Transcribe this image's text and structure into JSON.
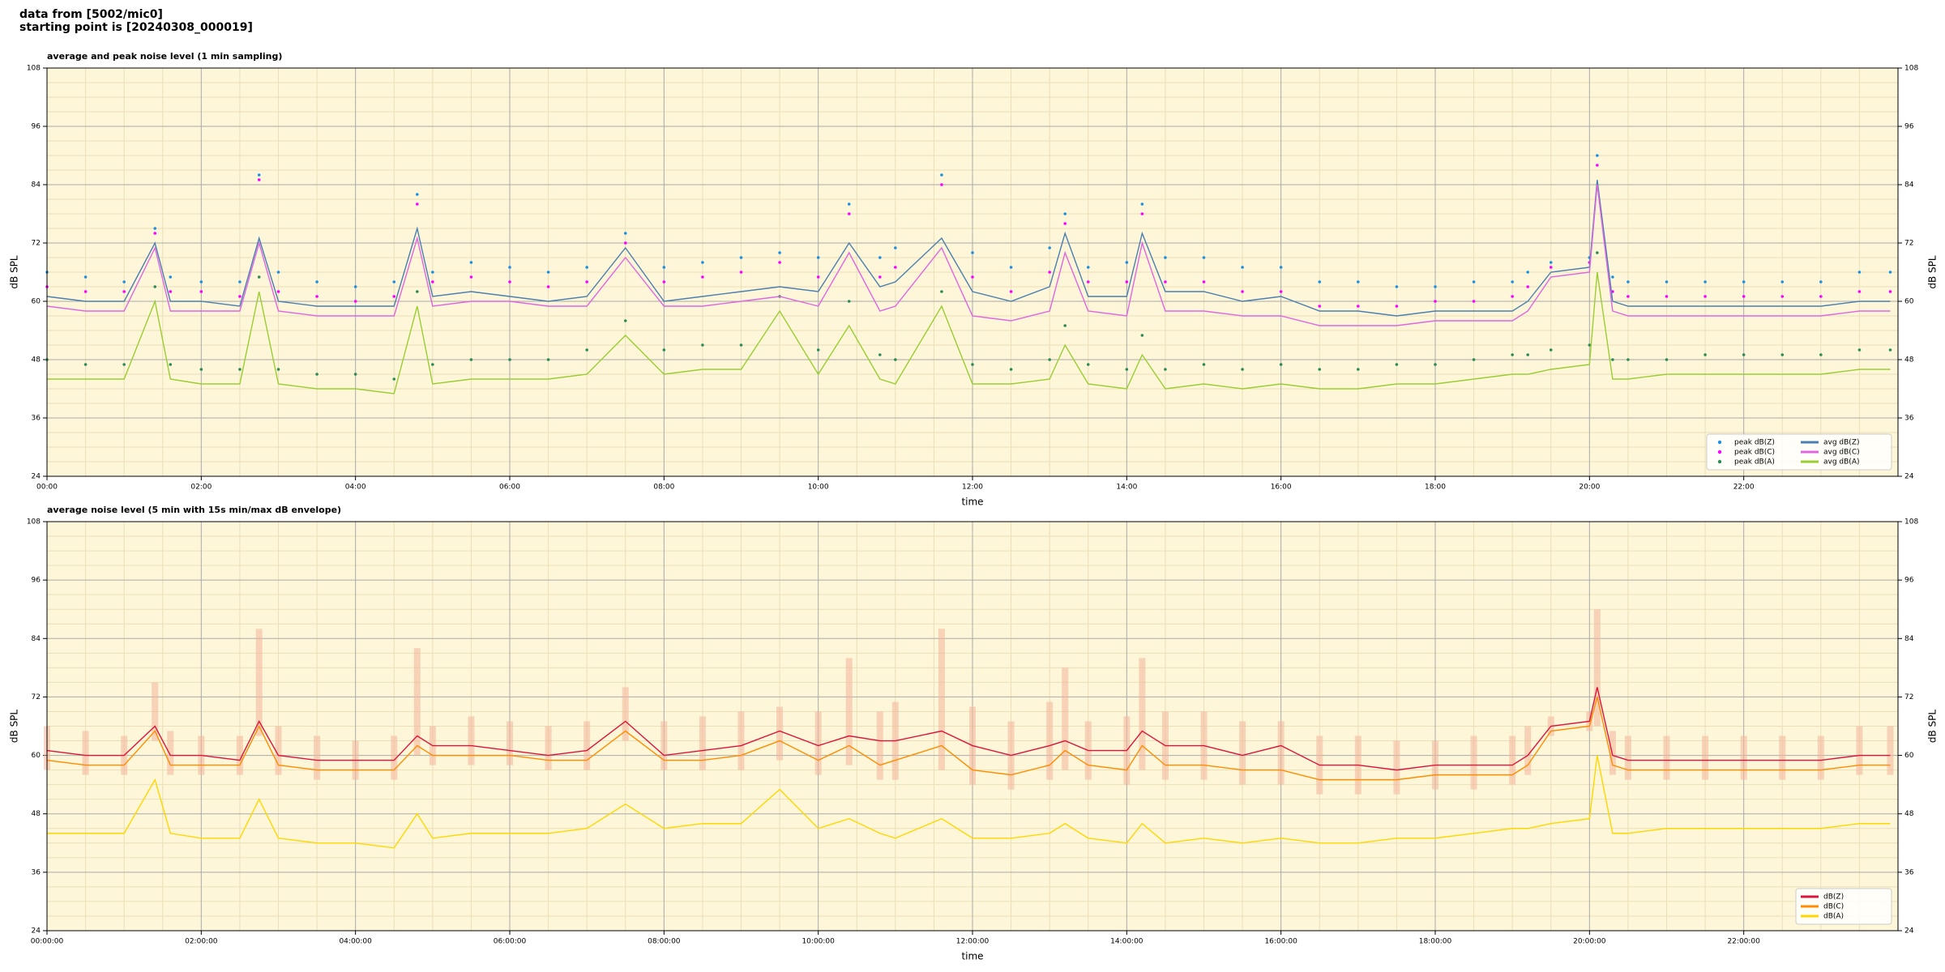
{
  "header": {
    "source": "data from [5002/mic0]",
    "start": "starting point is [20240308_000019]"
  },
  "chart_data": [
    {
      "type": "line",
      "title": "average and peak noise level (1 min sampling)",
      "xlabel": "time",
      "ylabel": "dB SPL",
      "y2label": "dB SPL",
      "xlim": [
        0,
        24
      ],
      "ylim": [
        24,
        108
      ],
      "y2lim": [
        24,
        108
      ],
      "xticks": [
        {
          "value": 0,
          "label": "00:00"
        },
        {
          "value": 2,
          "label": "02:00"
        },
        {
          "value": 4,
          "label": "04:00"
        },
        {
          "value": 6,
          "label": "06:00"
        },
        {
          "value": 8,
          "label": "08:00"
        },
        {
          "value": 10,
          "label": "10:00"
        },
        {
          "value": 12,
          "label": "12:00"
        },
        {
          "value": 14,
          "label": "14:00"
        },
        {
          "value": 16,
          "label": "16:00"
        },
        {
          "value": 18,
          "label": "18:00"
        },
        {
          "value": 20,
          "label": "20:00"
        },
        {
          "value": 22,
          "label": "22:00"
        }
      ],
      "xminorticks": [
        0.5,
        1,
        1.5,
        2.5,
        3,
        3.5,
        4.5,
        5,
        5.5,
        6.5,
        7,
        7.5,
        8.5,
        9,
        9.5,
        10.5,
        11,
        11.5,
        12.5,
        13,
        13.5,
        14.5,
        15,
        15.5,
        16.5,
        17,
        17.5,
        18.5,
        19,
        19.5,
        20.5,
        21,
        21.5,
        22.5,
        23,
        23.5
      ],
      "yticks": [
        24,
        36,
        48,
        60,
        72,
        84,
        96,
        108
      ],
      "y2ticks": [
        24,
        36,
        48,
        60,
        72,
        84,
        96,
        108
      ],
      "yminorticks": [
        27,
        30,
        33,
        39,
        42,
        45,
        51,
        54,
        57,
        63,
        66,
        69,
        75,
        78,
        81,
        87,
        90,
        93,
        99,
        102,
        105
      ],
      "grid": true,
      "background": "#fdf6d8",
      "legend": "lower right",
      "legend_columns": 2,
      "x": [
        0,
        0.5,
        1,
        1.4,
        1.6,
        2,
        2.5,
        2.75,
        3,
        3.5,
        4,
        4.5,
        4.8,
        5,
        5.5,
        6,
        6.5,
        7,
        7.5,
        8,
        8.5,
        9,
        9.5,
        10,
        10.4,
        10.8,
        11,
        11.6,
        12,
        12.5,
        13,
        13.2,
        13.5,
        14,
        14.2,
        14.5,
        15,
        15.5,
        16,
        16.5,
        17,
        17.5,
        18,
        18.5,
        19,
        19.2,
        19.5,
        20,
        20.1,
        20.3,
        20.5,
        21,
        21.5,
        22,
        22.5,
        23,
        23.5,
        23.9
      ],
      "series": [
        {
          "name": "peak dB(Z)",
          "type": "scatter",
          "color": "#1f8fe0",
          "values": [
            66,
            65,
            64,
            75,
            65,
            64,
            64,
            86,
            66,
            64,
            63,
            64,
            82,
            66,
            68,
            67,
            66,
            67,
            74,
            67,
            68,
            69,
            70,
            69,
            80,
            69,
            71,
            86,
            70,
            67,
            71,
            78,
            67,
            68,
            80,
            69,
            69,
            67,
            67,
            64,
            64,
            63,
            63,
            64,
            64,
            66,
            68,
            69,
            90,
            65,
            64,
            64,
            64,
            64,
            64,
            64,
            66,
            66
          ]
        },
        {
          "name": "peak dB(C)",
          "type": "scatter",
          "color": "#ff00ff",
          "values": [
            63,
            62,
            62,
            74,
            62,
            62,
            61,
            85,
            62,
            61,
            60,
            61,
            80,
            64,
            65,
            64,
            63,
            64,
            72,
            64,
            65,
            66,
            68,
            65,
            78,
            65,
            67,
            84,
            65,
            62,
            66,
            76,
            64,
            64,
            78,
            64,
            64,
            62,
            62,
            59,
            59,
            59,
            60,
            60,
            61,
            63,
            67,
            68,
            88,
            62,
            61,
            61,
            61,
            61,
            61,
            61,
            62,
            62
          ]
        },
        {
          "name": "peak dB(A)",
          "type": "scatter",
          "color": "#2e8b57",
          "values": [
            48,
            47,
            47,
            63,
            47,
            46,
            46,
            65,
            46,
            45,
            45,
            44,
            62,
            47,
            48,
            48,
            48,
            50,
            56,
            50,
            51,
            51,
            61,
            50,
            60,
            49,
            48,
            62,
            47,
            46,
            48,
            55,
            47,
            46,
            53,
            46,
            47,
            46,
            47,
            46,
            46,
            47,
            47,
            48,
            49,
            49,
            50,
            51,
            70,
            48,
            48,
            48,
            49,
            49,
            49,
            49,
            50,
            50
          ]
        },
        {
          "name": "avg dB(Z)",
          "type": "line",
          "color": "#4a7fb0",
          "values": [
            61,
            60,
            60,
            72,
            60,
            60,
            59,
            73,
            60,
            59,
            59,
            59,
            75,
            61,
            62,
            61,
            60,
            61,
            71,
            60,
            61,
            62,
            63,
            62,
            72,
            63,
            64,
            73,
            62,
            60,
            63,
            74,
            61,
            61,
            74,
            62,
            62,
            60,
            61,
            58,
            58,
            57,
            58,
            58,
            58,
            60,
            66,
            67,
            85,
            60,
            59,
            59,
            59,
            59,
            59,
            59,
            60,
            60
          ]
        },
        {
          "name": "avg dB(C)",
          "type": "line",
          "color": "#e066e0",
          "values": [
            59,
            58,
            58,
            71,
            58,
            58,
            58,
            72,
            58,
            57,
            57,
            57,
            73,
            59,
            60,
            60,
            59,
            59,
            69,
            59,
            59,
            60,
            61,
            59,
            70,
            58,
            59,
            71,
            57,
            56,
            58,
            70,
            58,
            57,
            72,
            58,
            58,
            57,
            57,
            55,
            55,
            55,
            56,
            56,
            56,
            58,
            65,
            66,
            84,
            58,
            57,
            57,
            57,
            57,
            57,
            57,
            58,
            58
          ]
        },
        {
          "name": "avg dB(A)",
          "type": "line",
          "color": "#9acd32",
          "values": [
            44,
            44,
            44,
            60,
            44,
            43,
            43,
            62,
            43,
            42,
            42,
            41,
            59,
            43,
            44,
            44,
            44,
            45,
            53,
            45,
            46,
            46,
            58,
            45,
            55,
            44,
            43,
            59,
            43,
            43,
            44,
            51,
            43,
            42,
            49,
            42,
            43,
            42,
            43,
            42,
            42,
            43,
            43,
            44,
            45,
            45,
            46,
            47,
            66,
            44,
            44,
            45,
            45,
            45,
            45,
            45,
            46,
            46
          ]
        }
      ]
    },
    {
      "type": "line",
      "title": "average noise level (5 min with 15s min/max dB envelope)",
      "xlabel": "time",
      "ylabel": "dB SPL",
      "y2label": "dB SPL",
      "xlim": [
        0,
        24
      ],
      "ylim": [
        24,
        108
      ],
      "y2lim": [
        24,
        108
      ],
      "xticks": [
        {
          "value": 0,
          "label": "00:00:00"
        },
        {
          "value": 2,
          "label": "02:00:00"
        },
        {
          "value": 4,
          "label": "04:00:00"
        },
        {
          "value": 6,
          "label": "06:00:00"
        },
        {
          "value": 8,
          "label": "08:00:00"
        },
        {
          "value": 10,
          "label": "10:00:00"
        },
        {
          "value": 12,
          "label": "12:00:00"
        },
        {
          "value": 14,
          "label": "14:00:00"
        },
        {
          "value": 16,
          "label": "16:00:00"
        },
        {
          "value": 18,
          "label": "18:00:00"
        },
        {
          "value": 20,
          "label": "20:00:00"
        },
        {
          "value": 22,
          "label": "22:00:00"
        }
      ],
      "xminorticks": [
        0.5,
        1,
        1.5,
        2.5,
        3,
        3.5,
        4.5,
        5,
        5.5,
        6.5,
        7,
        7.5,
        8.5,
        9,
        9.5,
        10.5,
        11,
        11.5,
        12.5,
        13,
        13.5,
        14.5,
        15,
        15.5,
        16.5,
        17,
        17.5,
        18.5,
        19,
        19.5,
        20.5,
        21,
        21.5,
        22.5,
        23,
        23.5
      ],
      "yticks": [
        24,
        36,
        48,
        60,
        72,
        84,
        96,
        108
      ],
      "y2ticks": [
        24,
        36,
        48,
        60,
        72,
        84,
        96,
        108
      ],
      "yminorticks": [
        27,
        30,
        33,
        39,
        42,
        45,
        51,
        54,
        57,
        63,
        66,
        69,
        75,
        78,
        81,
        87,
        90,
        93,
        99,
        102,
        105
      ],
      "grid": true,
      "background": "#fdf6d8",
      "legend": "lower right",
      "legend_columns": 1,
      "x": [
        0,
        0.5,
        1,
        1.4,
        1.6,
        2,
        2.5,
        2.75,
        3,
        3.5,
        4,
        4.5,
        4.8,
        5,
        5.5,
        6,
        6.5,
        7,
        7.5,
        8,
        8.5,
        9,
        9.5,
        10,
        10.4,
        10.8,
        11,
        11.6,
        12,
        12.5,
        13,
        13.2,
        13.5,
        14,
        14.2,
        14.5,
        15,
        15.5,
        16,
        16.5,
        17,
        17.5,
        18,
        18.5,
        19,
        19.2,
        19.5,
        20,
        20.1,
        20.3,
        20.5,
        21,
        21.5,
        22,
        22.5,
        23,
        23.5,
        23.9
      ],
      "envelope": {
        "color": "#f4b49a",
        "low": [
          57,
          56,
          56,
          63,
          56,
          56,
          56,
          64,
          56,
          55,
          55,
          55,
          60,
          58,
          58,
          58,
          57,
          57,
          63,
          57,
          57,
          57,
          59,
          56,
          58,
          55,
          55,
          57,
          54,
          53,
          55,
          57,
          55,
          54,
          57,
          55,
          55,
          54,
          54,
          52,
          52,
          52,
          53,
          53,
          54,
          56,
          64,
          65,
          66,
          56,
          55,
          55,
          55,
          55,
          55,
          55,
          56,
          56
        ],
        "high": [
          66,
          65,
          64,
          75,
          65,
          64,
          64,
          86,
          66,
          64,
          63,
          64,
          82,
          66,
          68,
          67,
          66,
          67,
          74,
          67,
          68,
          69,
          70,
          69,
          80,
          69,
          71,
          86,
          70,
          67,
          71,
          78,
          67,
          68,
          80,
          69,
          69,
          67,
          67,
          64,
          64,
          63,
          63,
          64,
          64,
          66,
          68,
          69,
          90,
          65,
          64,
          64,
          64,
          64,
          64,
          64,
          66,
          66
        ]
      },
      "series": [
        {
          "name": "dB(Z)",
          "type": "line",
          "color": "#dc143c",
          "values": [
            61,
            60,
            60,
            66,
            60,
            60,
            59,
            67,
            60,
            59,
            59,
            59,
            64,
            62,
            62,
            61,
            60,
            61,
            67,
            60,
            61,
            62,
            65,
            62,
            64,
            63,
            63,
            65,
            62,
            60,
            62,
            63,
            61,
            61,
            65,
            62,
            62,
            60,
            62,
            58,
            58,
            57,
            58,
            58,
            58,
            60,
            66,
            67,
            74,
            60,
            59,
            59,
            59,
            59,
            59,
            59,
            60,
            60
          ]
        },
        {
          "name": "dB(C)",
          "type": "line",
          "color": "#ff8c00",
          "values": [
            59,
            58,
            58,
            65,
            58,
            58,
            58,
            66,
            58,
            57,
            57,
            57,
            62,
            60,
            60,
            60,
            59,
            59,
            65,
            59,
            59,
            60,
            63,
            59,
            62,
            58,
            59,
            62,
            57,
            56,
            58,
            61,
            58,
            57,
            62,
            58,
            58,
            57,
            57,
            55,
            55,
            55,
            56,
            56,
            56,
            58,
            65,
            66,
            72,
            58,
            57,
            57,
            57,
            57,
            57,
            57,
            58,
            58
          ]
        },
        {
          "name": "dB(A)",
          "type": "line",
          "color": "#ffd700",
          "values": [
            44,
            44,
            44,
            55,
            44,
            43,
            43,
            51,
            43,
            42,
            42,
            41,
            48,
            43,
            44,
            44,
            44,
            45,
            50,
            45,
            46,
            46,
            53,
            45,
            47,
            44,
            43,
            47,
            43,
            43,
            44,
            46,
            43,
            42,
            46,
            42,
            43,
            42,
            43,
            42,
            42,
            43,
            43,
            44,
            45,
            45,
            46,
            47,
            60,
            44,
            44,
            45,
            45,
            45,
            45,
            45,
            46,
            46
          ]
        }
      ]
    }
  ]
}
